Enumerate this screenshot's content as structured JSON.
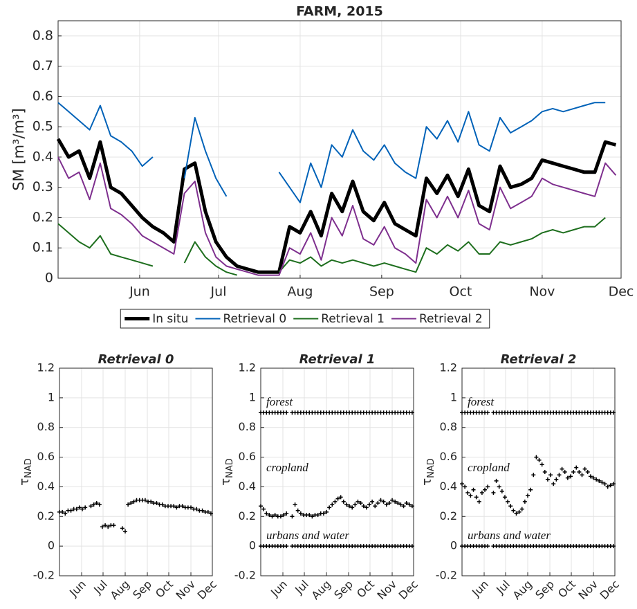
{
  "chart_data": [
    {
      "type": "line",
      "title": "FARM, 2015",
      "ylabel": "SM [m³/m³]",
      "x": [
        121,
        125,
        129,
        133,
        137,
        141,
        145,
        149,
        153,
        157,
        161,
        165,
        169,
        173,
        177,
        181,
        185,
        189,
        193,
        197,
        201,
        205,
        209,
        213,
        217,
        221,
        225,
        229,
        233,
        237,
        241,
        245,
        249,
        253,
        257,
        261,
        265,
        269,
        273,
        277,
        281,
        285,
        289,
        293,
        297,
        301,
        305,
        309,
        313,
        317,
        321,
        325,
        329,
        333
      ],
      "xlim": [
        121,
        335
      ],
      "xticks": [
        {
          "value": 152,
          "label": "Jun"
        },
        {
          "value": 182,
          "label": "Jul"
        },
        {
          "value": 213,
          "label": "Aug"
        },
        {
          "value": 244,
          "label": "Sep"
        },
        {
          "value": 274,
          "label": "Oct"
        },
        {
          "value": 305,
          "label": "Nov"
        },
        {
          "value": 335,
          "label": "Dec"
        }
      ],
      "ylim": [
        0,
        0.85
      ],
      "yticks": [
        0,
        0.1,
        0.2,
        0.3,
        0.4,
        0.5,
        0.6,
        0.7,
        0.8
      ],
      "grid": true,
      "legend": "bottom",
      "series": [
        {
          "name": "In situ",
          "color": "#000000",
          "linewidth": 5,
          "values": [
            0.46,
            0.4,
            0.42,
            0.33,
            0.45,
            0.3,
            0.28,
            0.24,
            0.2,
            0.17,
            0.15,
            0.12,
            0.36,
            0.38,
            0.22,
            0.12,
            0.07,
            0.04,
            0.03,
            0.02,
            0.02,
            0.02,
            0.17,
            0.15,
            0.22,
            0.14,
            0.28,
            0.22,
            0.32,
            0.22,
            0.19,
            0.25,
            0.18,
            0.16,
            0.14,
            0.33,
            0.28,
            0.34,
            0.27,
            0.36,
            0.24,
            0.22,
            0.37,
            0.3,
            0.31,
            0.33,
            0.39,
            0.38,
            0.37,
            0.36,
            0.35,
            0.35,
            0.45,
            0.44
          ]
        },
        {
          "name": "Retrieval 0",
          "color": "#0062b8",
          "linewidth": 2,
          "values": [
            0.58,
            0.55,
            0.52,
            0.49,
            0.57,
            0.47,
            0.45,
            0.42,
            0.37,
            0.4,
            null,
            null,
            0.33,
            0.53,
            0.42,
            0.33,
            0.27,
            null,
            null,
            null,
            null,
            0.35,
            0.3,
            0.25,
            0.38,
            0.3,
            0.44,
            0.4,
            0.49,
            0.42,
            0.39,
            0.44,
            0.38,
            0.35,
            0.33,
            0.5,
            0.46,
            0.52,
            0.45,
            0.55,
            0.44,
            0.42,
            0.53,
            0.48,
            0.5,
            0.52,
            0.55,
            0.56,
            0.55,
            0.56,
            0.57,
            0.58,
            0.58,
            null
          ]
        },
        {
          "name": "Retrieval 1",
          "color": "#1d6e1d",
          "linewidth": 2,
          "values": [
            0.18,
            0.15,
            0.12,
            0.1,
            0.14,
            0.08,
            0.07,
            0.06,
            0.05,
            0.04,
            null,
            null,
            0.05,
            0.12,
            0.07,
            0.04,
            0.02,
            0.01,
            null,
            null,
            null,
            0.02,
            0.06,
            0.05,
            0.07,
            0.04,
            0.06,
            0.05,
            0.06,
            0.05,
            0.04,
            0.05,
            0.04,
            0.03,
            0.02,
            0.1,
            0.08,
            0.11,
            0.09,
            0.12,
            0.08,
            0.08,
            0.12,
            0.11,
            0.12,
            0.13,
            0.15,
            0.16,
            0.15,
            0.16,
            0.17,
            0.17,
            0.2,
            null
          ]
        },
        {
          "name": "Retrieval 2",
          "color": "#7e2f8e",
          "linewidth": 2,
          "values": [
            0.4,
            0.33,
            0.35,
            0.26,
            0.38,
            0.23,
            0.21,
            0.18,
            0.14,
            0.12,
            0.1,
            0.08,
            0.28,
            0.32,
            0.15,
            0.07,
            0.04,
            0.03,
            0.02,
            0.01,
            0.01,
            0.01,
            0.1,
            0.08,
            0.15,
            0.06,
            0.2,
            0.14,
            0.24,
            0.13,
            0.11,
            0.17,
            0.1,
            0.08,
            0.05,
            0.26,
            0.2,
            0.27,
            0.2,
            0.29,
            0.18,
            0.16,
            0.3,
            0.23,
            0.25,
            0.27,
            0.33,
            0.31,
            0.3,
            0.29,
            0.28,
            0.27,
            0.38,
            0.34
          ]
        }
      ]
    },
    {
      "type": "scatter",
      "title": "Retrieval 0",
      "ylabel": "τ",
      "ylabel_subscript": "NAD",
      "x": [
        121,
        125,
        129,
        133,
        137,
        141,
        145,
        149,
        153,
        157,
        161,
        165,
        169,
        173,
        177,
        181,
        185,
        189,
        193,
        197,
        201,
        205,
        209,
        213,
        217,
        221,
        225,
        229,
        233,
        237,
        241,
        245,
        249,
        253,
        257,
        261,
        265,
        269,
        273,
        277,
        281,
        285,
        289,
        293,
        297,
        301,
        305,
        309,
        313,
        317,
        321,
        325,
        329,
        333
      ],
      "xlim": [
        121,
        335
      ],
      "xticks": [
        {
          "value": 152,
          "label": "Jun"
        },
        {
          "value": 182,
          "label": "Jul"
        },
        {
          "value": 213,
          "label": "Aug"
        },
        {
          "value": 244,
          "label": "Sep"
        },
        {
          "value": 274,
          "label": "Oct"
        },
        {
          "value": 305,
          "label": "Nov"
        },
        {
          "value": 335,
          "label": "Dec"
        }
      ],
      "xtick_rotation": -45,
      "ylim": [
        -0.2,
        1.2
      ],
      "yticks": [
        -0.2,
        0,
        0.2,
        0.4,
        0.6,
        0.8,
        1,
        1.2
      ],
      "grid": true,
      "series": [
        {
          "color": "#000000",
          "values": [
            0.23,
            0.23,
            0.22,
            0.24,
            0.24,
            0.25,
            0.25,
            0.26,
            0.25,
            0.26,
            null,
            0.27,
            0.28,
            0.29,
            0.28,
            0.13,
            0.14,
            0.13,
            0.14,
            0.14,
            null,
            null,
            0.12,
            0.1,
            0.28,
            0.29,
            0.3,
            0.31,
            0.31,
            0.31,
            0.31,
            0.3,
            0.3,
            0.29,
            0.29,
            0.28,
            0.28,
            0.27,
            0.27,
            0.27,
            0.27,
            0.26,
            0.27,
            0.27,
            0.26,
            0.26,
            0.26,
            0.25,
            0.25,
            0.24,
            0.24,
            0.23,
            0.23,
            0.22
          ]
        }
      ]
    },
    {
      "type": "scatter",
      "title": "Retrieval 1",
      "ylabel": "τ",
      "ylabel_subscript": "NAD",
      "annotations": [
        "forest",
        "cropland",
        "urbans and water"
      ],
      "x": [
        121,
        125,
        129,
        133,
        137,
        141,
        145,
        149,
        153,
        157,
        161,
        165,
        169,
        173,
        177,
        181,
        185,
        189,
        193,
        197,
        201,
        205,
        209,
        213,
        217,
        221,
        225,
        229,
        233,
        237,
        241,
        245,
        249,
        253,
        257,
        261,
        265,
        269,
        273,
        277,
        281,
        285,
        289,
        293,
        297,
        301,
        305,
        309,
        313,
        317,
        321,
        325,
        329,
        333
      ],
      "xlim": [
        121,
        335
      ],
      "xticks": [
        {
          "value": 152,
          "label": "Jun"
        },
        {
          "value": 182,
          "label": "Jul"
        },
        {
          "value": 213,
          "label": "Aug"
        },
        {
          "value": 244,
          "label": "Sep"
        },
        {
          "value": 274,
          "label": "Oct"
        },
        {
          "value": 305,
          "label": "Nov"
        },
        {
          "value": 335,
          "label": "Dec"
        }
      ],
      "xtick_rotation": -45,
      "ylim": [
        -0.2,
        1.2
      ],
      "yticks": [
        -0.2,
        0,
        0.2,
        0.4,
        0.6,
        0.8,
        1,
        1.2
      ],
      "grid": true,
      "series": [
        {
          "color": "#000000",
          "values": [
            0.9,
            0.9,
            0.9,
            0.9,
            0.9,
            0.9,
            0.9,
            0.9,
            0.9,
            0.9,
            null,
            0.9,
            0.9,
            0.9,
            0.9,
            0.9,
            0.9,
            0.9,
            0.9,
            0.9,
            0.9,
            0.9,
            0.9,
            0.9,
            0.9,
            0.9,
            0.9,
            0.9,
            0.9,
            0.9,
            0.9,
            0.9,
            0.9,
            0.9,
            0.9,
            0.9,
            0.9,
            0.9,
            0.9,
            0.9,
            0.9,
            0.9,
            0.9,
            0.9,
            0.9,
            0.9,
            0.9,
            0.9,
            0.9,
            0.9,
            0.9,
            0.9,
            0.9,
            0.9
          ]
        },
        {
          "color": "#000000",
          "values": [
            0.27,
            0.25,
            0.22,
            0.21,
            0.2,
            0.21,
            0.2,
            0.2,
            0.21,
            0.22,
            null,
            0.2,
            0.28,
            0.24,
            0.22,
            0.21,
            0.21,
            0.21,
            0.2,
            0.21,
            0.21,
            0.22,
            0.22,
            0.23,
            0.26,
            0.28,
            0.3,
            0.32,
            0.33,
            0.3,
            0.28,
            0.27,
            0.26,
            0.28,
            0.3,
            0.29,
            0.27,
            0.26,
            0.28,
            0.3,
            0.27,
            0.29,
            0.31,
            0.3,
            0.28,
            0.29,
            0.31,
            0.3,
            0.29,
            0.28,
            0.27,
            0.29,
            0.28,
            0.27
          ]
        },
        {
          "color": "#000000",
          "values": [
            0,
            0,
            0,
            0,
            0,
            0,
            0,
            0,
            0,
            0,
            null,
            0,
            0,
            0,
            0,
            0,
            0,
            0,
            0,
            0,
            0,
            0,
            0,
            0,
            0,
            0,
            0,
            0,
            0,
            0,
            0,
            0,
            0,
            0,
            0,
            0,
            0,
            0,
            0,
            0,
            0,
            0,
            0,
            0,
            0,
            0,
            0,
            0,
            0,
            0,
            0,
            0,
            0,
            0
          ]
        }
      ]
    },
    {
      "type": "scatter",
      "title": "Retrieval 2",
      "ylabel": "τ",
      "ylabel_subscript": "NAD",
      "annotations": [
        "forest",
        "cropland",
        "urbans and water"
      ],
      "x": [
        121,
        125,
        129,
        133,
        137,
        141,
        145,
        149,
        153,
        157,
        161,
        165,
        169,
        173,
        177,
        181,
        185,
        189,
        193,
        197,
        201,
        205,
        209,
        213,
        217,
        221,
        225,
        229,
        233,
        237,
        241,
        245,
        249,
        253,
        257,
        261,
        265,
        269,
        273,
        277,
        281,
        285,
        289,
        293,
        297,
        301,
        305,
        309,
        313,
        317,
        321,
        325,
        329,
        333
      ],
      "xlim": [
        121,
        335
      ],
      "xticks": [
        {
          "value": 152,
          "label": "Jun"
        },
        {
          "value": 182,
          "label": "Jul"
        },
        {
          "value": 213,
          "label": "Aug"
        },
        {
          "value": 244,
          "label": "Sep"
        },
        {
          "value": 274,
          "label": "Oct"
        },
        {
          "value": 305,
          "label": "Nov"
        },
        {
          "value": 335,
          "label": "Dec"
        }
      ],
      "xtick_rotation": -45,
      "ylim": [
        -0.2,
        1.2
      ],
      "yticks": [
        -0.2,
        0,
        0.2,
        0.4,
        0.6,
        0.8,
        1,
        1.2
      ],
      "grid": true,
      "series": [
        {
          "color": "#000000",
          "values": [
            0.9,
            0.9,
            0.9,
            0.9,
            0.9,
            0.9,
            0.9,
            0.9,
            0.9,
            0.9,
            null,
            0.9,
            0.9,
            0.9,
            0.9,
            0.9,
            0.9,
            0.9,
            0.9,
            0.9,
            0.9,
            0.9,
            0.9,
            0.9,
            0.9,
            0.9,
            0.9,
            0.9,
            0.9,
            0.9,
            0.9,
            0.9,
            0.9,
            0.9,
            0.9,
            0.9,
            0.9,
            0.9,
            0.9,
            0.9,
            0.9,
            0.9,
            0.9,
            0.9,
            0.9,
            0.9,
            0.9,
            0.9,
            0.9,
            0.9,
            0.9,
            0.9,
            0.9,
            0.9
          ]
        },
        {
          "color": "#000000",
          "values": [
            0.42,
            0.4,
            0.36,
            0.34,
            0.38,
            0.33,
            0.3,
            0.36,
            0.38,
            0.4,
            null,
            0.36,
            0.44,
            0.4,
            0.37,
            0.33,
            0.3,
            0.27,
            0.24,
            0.22,
            0.23,
            0.25,
            0.3,
            0.34,
            0.38,
            0.48,
            0.6,
            0.58,
            0.55,
            0.5,
            0.45,
            0.48,
            0.42,
            0.45,
            0.48,
            0.52,
            0.5,
            0.46,
            0.47,
            0.5,
            0.53,
            0.5,
            0.48,
            0.52,
            0.5,
            0.47,
            0.46,
            0.45,
            0.44,
            0.43,
            0.42,
            0.4,
            0.41,
            0.42
          ]
        },
        {
          "color": "#000000",
          "values": [
            0,
            0,
            0,
            0,
            0,
            0,
            0,
            0,
            0,
            0,
            null,
            0,
            0,
            0,
            0,
            0,
            0,
            0,
            0,
            0,
            0,
            0,
            0,
            0,
            0,
            0,
            0,
            0,
            0,
            0,
            0,
            0,
            0,
            0,
            0,
            0,
            0,
            0,
            0,
            0,
            0,
            0,
            0,
            0,
            0,
            0,
            0,
            0,
            0,
            0,
            0,
            0,
            0,
            0
          ]
        }
      ]
    }
  ]
}
